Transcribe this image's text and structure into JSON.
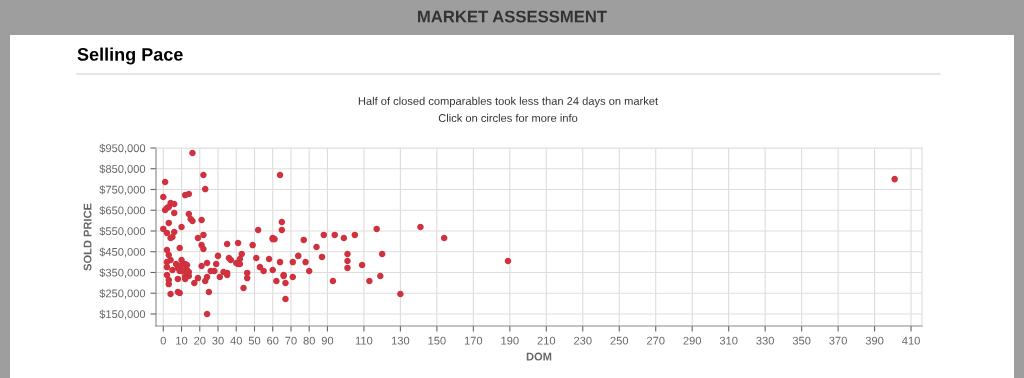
{
  "chart_data": {
    "type": "scatter",
    "title": "Selling Pace",
    "subtitle": "Half of closed comparables took less than 24 days on market",
    "annotations": [
      "MARKET ASSESSMENT",
      "Click on circles for more info"
    ],
    "xlabel": "DOM",
    "ylabel": "SOLD PRICE",
    "marker": "circle",
    "grid": true,
    "legend": false,
    "xlim": [
      -4,
      416
    ],
    "ylim": [
      92000,
      950000
    ],
    "xticks": [
      0,
      10,
      20,
      30,
      40,
      50,
      60,
      70,
      80,
      90,
      110,
      130,
      150,
      170,
      190,
      210,
      230,
      250,
      270,
      290,
      310,
      330,
      350,
      370,
      390,
      410
    ],
    "yticks": [
      {
        "value": 150000,
        "label": "$150,000"
      },
      {
        "value": 250000,
        "label": "$250,000"
      },
      {
        "value": 350000,
        "label": "$350,000"
      },
      {
        "value": 450000,
        "label": "$450,000"
      },
      {
        "value": 550000,
        "label": "$550,000"
      },
      {
        "value": 650000,
        "label": "$650,000"
      },
      {
        "value": 750000,
        "label": "$750,000"
      },
      {
        "value": 850000,
        "label": "$850,000"
      },
      {
        "value": 950000,
        "label": "$950,000"
      }
    ],
    "series": [
      {
        "color": "#d0313f",
        "x": [
          1,
          0,
          2,
          3,
          4,
          6,
          1,
          6,
          3,
          0,
          2,
          6,
          5,
          4,
          10,
          9,
          2,
          3,
          2,
          4,
          7,
          2,
          5,
          8,
          9,
          10,
          10,
          2,
          3,
          3,
          8,
          4,
          8,
          9,
          16,
          22,
          23,
          12,
          14,
          14,
          15,
          16,
          21,
          19,
          22,
          21,
          22,
          35,
          41,
          49,
          52,
          65,
          65,
          60,
          60,
          61,
          30,
          36,
          37,
          43,
          42,
          51,
          58,
          64,
          40,
          41,
          42,
          12,
          13,
          12,
          13,
          14,
          12,
          14,
          12,
          10,
          21,
          24,
          26,
          28,
          29,
          33,
          35,
          35,
          31,
          53,
          55,
          60,
          46,
          46,
          17,
          19,
          23,
          24,
          66,
          67,
          62,
          44,
          25,
          67,
          24,
          64,
          77,
          84,
          88,
          94,
          99,
          105,
          117,
          74,
          87,
          78,
          71,
          101,
          101,
          101,
          120,
          109,
          80,
          66,
          71,
          93,
          113,
          119,
          130,
          141,
          154,
          189,
          401
        ],
        "values": [
          786000,
          714000,
          661000,
          666000,
          685000,
          680000,
          651000,
          637000,
          589000,
          560000,
          540000,
          545000,
          521000,
          516000,
          569000,
          468000,
          458000,
          434000,
          400000,
          410000,
          391000,
          376000,
          362000,
          372000,
          357000,
          386000,
          410000,
          338000,
          314000,
          294000,
          319000,
          246000,
          256000,
          251000,
          926000,
          820000,
          752000,
          723000,
          728000,
          632000,
          608000,
          598000,
          603000,
          516000,
          531000,
          482000,
          463000,
          487000,
          492000,
          482000,
          555000,
          593000,
          555000,
          516000,
          511000,
          511000,
          430000,
          420000,
          410000,
          439000,
          415000,
          420000,
          415000,
          400000,
          396000,
          391000,
          391000,
          391000,
          386000,
          362000,
          362000,
          352000,
          333000,
          333000,
          319000,
          357000,
          381000,
          396000,
          357000,
          357000,
          391000,
          352000,
          348000,
          338000,
          328000,
          376000,
          357000,
          362000,
          348000,
          323000,
          299000,
          323000,
          309000,
          328000,
          338000,
          299000,
          309000,
          275000,
          256000,
          222000,
          150000,
          820000,
          507000,
          473000,
          531000,
          531000,
          516000,
          531000,
          560000,
          430000,
          425000,
          400000,
          400000,
          439000,
          405000,
          372000,
          439000,
          386000,
          357000,
          333000,
          328000,
          309000,
          309000,
          333000,
          246000,
          569000,
          516000,
          405000,
          800000
        ]
      }
    ]
  }
}
